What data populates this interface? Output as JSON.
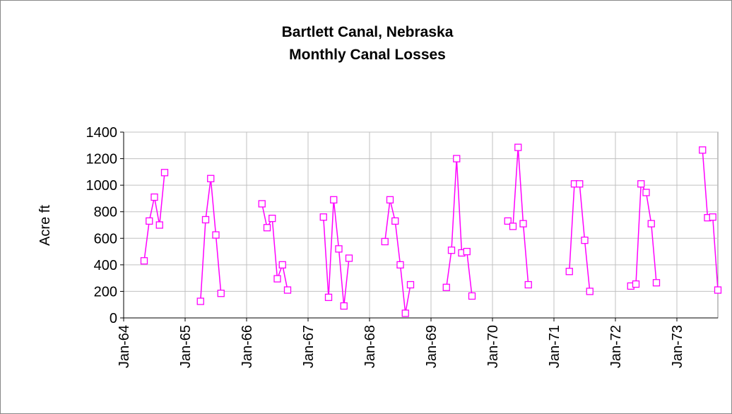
{
  "chart_data": {
    "type": "line",
    "title": "Bartlett Canal, Nebraska",
    "subtitle": "Monthly Canal Losses",
    "y_label": "Acre ft",
    "x": [
      "1964-05",
      "1964-06",
      "1964-07",
      "1964-08",
      "1964-09",
      "1965-01",
      "1965-04",
      "1965-05",
      "1965-06",
      "1965-07",
      "1965-08",
      "1966-01",
      "1966-04",
      "1966-05",
      "1966-06",
      "1966-07",
      "1966-08",
      "1966-09",
      "1967-01",
      "1967-04",
      "1967-05",
      "1967-06",
      "1967-07",
      "1967-08",
      "1967-09",
      "1968-01",
      "1968-04",
      "1968-05",
      "1968-06",
      "1968-07",
      "1968-08",
      "1968-09",
      "1969-01",
      "1969-04",
      "1969-05",
      "1969-06",
      "1969-07",
      "1969-08",
      "1969-09",
      "1970-01",
      "1970-04",
      "1970-05",
      "1970-06",
      "1970-07",
      "1970-08",
      "1971-01",
      "1971-04",
      "1971-05",
      "1971-06",
      "1971-07",
      "1971-08",
      "1972-01",
      "1972-04",
      "1972-05",
      "1972-06",
      "1972-07",
      "1972-08",
      "1972-09",
      "1973-01",
      "1973-06",
      "1973-07",
      "1973-08",
      "1973-09"
    ],
    "series": [
      {
        "name": "Monthly Canal Losses",
        "color": "#ff00ff",
        "values": [
          430,
          730,
          910,
          700,
          1095,
          null,
          125,
          740,
          1050,
          625,
          185,
          null,
          860,
          680,
          750,
          295,
          400,
          210,
          null,
          760,
          155,
          890,
          520,
          90,
          450,
          null,
          575,
          890,
          730,
          400,
          35,
          250,
          null,
          230,
          510,
          1200,
          490,
          500,
          165,
          null,
          730,
          690,
          1285,
          710,
          250,
          null,
          350,
          1010,
          1010,
          585,
          200,
          null,
          240,
          255,
          1010,
          945,
          710,
          265,
          null,
          1265,
          755,
          760,
          210
        ]
      }
    ],
    "xlim": [
      "1964-01",
      "1973-09"
    ],
    "xticks": [
      {
        "value": "1964-01",
        "label": "Jan-64"
      },
      {
        "value": "1965-01",
        "label": "Jan-65"
      },
      {
        "value": "1966-01",
        "label": "Jan-66"
      },
      {
        "value": "1967-01",
        "label": "Jan-67"
      },
      {
        "value": "1968-01",
        "label": "Jan-68"
      },
      {
        "value": "1969-01",
        "label": "Jan-69"
      },
      {
        "value": "1970-01",
        "label": "Jan-70"
      },
      {
        "value": "1971-01",
        "label": "Jan-71"
      },
      {
        "value": "1972-01",
        "label": "Jan-72"
      },
      {
        "value": "1973-01",
        "label": "Jan-73"
      }
    ],
    "ylim": [
      0,
      1400
    ],
    "yticks": [
      0,
      200,
      400,
      600,
      800,
      1000,
      1200,
      1400
    ],
    "grid": true
  }
}
